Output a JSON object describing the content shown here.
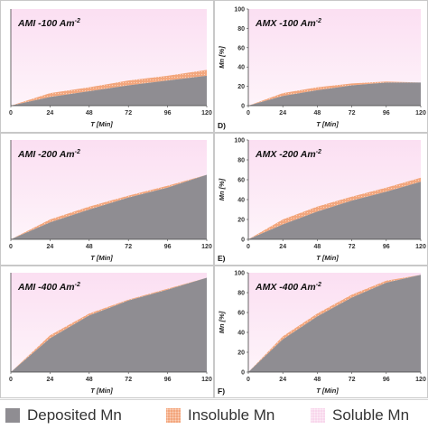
{
  "chart_data": [
    {
      "type": "area",
      "panel_label": "",
      "title": "AMI -100 Am",
      "title_sup": "-2",
      "xlabel": "T [Min]",
      "ylabel": "",
      "x": [
        0,
        24,
        48,
        72,
        96,
        120
      ],
      "xlim": [
        0,
        120
      ],
      "ylim": [
        0,
        100
      ],
      "xticks": [
        "0",
        "24",
        "48",
        "72",
        "96",
        "120"
      ],
      "yticks": [],
      "series": [
        {
          "name": "Deposited Mn",
          "values": [
            0,
            9,
            15,
            21,
            26,
            31
          ]
        },
        {
          "name": "Insoluble Mn",
          "values": [
            0,
            4,
            4,
            5,
            5,
            6
          ]
        },
        {
          "name": "Soluble Mn",
          "values": [
            100,
            87,
            81,
            74,
            69,
            63
          ]
        }
      ]
    },
    {
      "type": "area",
      "panel_label": "D)",
      "title": "AMX -100 Am",
      "title_sup": "-2",
      "xlabel": "T [Min]",
      "ylabel": "Mn [%]",
      "x": [
        0,
        24,
        48,
        72,
        96,
        120
      ],
      "xlim": [
        0,
        120
      ],
      "ylim": [
        0,
        100
      ],
      "xticks": [
        "0",
        "24",
        "48",
        "72",
        "96",
        "120"
      ],
      "yticks": [
        "0",
        "20",
        "40",
        "60",
        "80",
        "100"
      ],
      "series": [
        {
          "name": "Deposited Mn",
          "values": [
            0,
            10,
            16,
            21,
            24,
            24
          ]
        },
        {
          "name": "Insoluble Mn",
          "values": [
            0,
            3,
            3,
            2,
            1,
            0
          ]
        },
        {
          "name": "Soluble Mn",
          "values": [
            100,
            87,
            81,
            77,
            75,
            76
          ]
        }
      ]
    },
    {
      "type": "area",
      "panel_label": "",
      "title": "AMI -200 Am",
      "title_sup": "-2",
      "xlabel": "T [Min]",
      "ylabel": "",
      "x": [
        0,
        24,
        48,
        72,
        96,
        120
      ],
      "xlim": [
        0,
        120
      ],
      "ylim": [
        0,
        100
      ],
      "xticks": [
        "0",
        "24",
        "48",
        "72",
        "96",
        "120"
      ],
      "yticks": [],
      "series": [
        {
          "name": "Deposited Mn",
          "values": [
            0,
            17,
            30,
            42,
            52,
            65
          ]
        },
        {
          "name": "Insoluble Mn",
          "values": [
            0,
            3,
            3,
            2,
            2,
            0
          ]
        },
        {
          "name": "Soluble Mn",
          "values": [
            100,
            80,
            67,
            56,
            46,
            35
          ]
        }
      ]
    },
    {
      "type": "area",
      "panel_label": "E)",
      "title": "AMX -200 Am",
      "title_sup": "-2",
      "xlabel": "T [Min]",
      "ylabel": "Mn [%]",
      "x": [
        0,
        24,
        48,
        72,
        96,
        120
      ],
      "xlim": [
        0,
        120
      ],
      "ylim": [
        0,
        100
      ],
      "xticks": [
        "0",
        "24",
        "48",
        "72",
        "96",
        "120"
      ],
      "yticks": [
        "0",
        "20",
        "40",
        "60",
        "80",
        "100"
      ],
      "series": [
        {
          "name": "Deposited Mn",
          "values": [
            0,
            15,
            28,
            39,
            48,
            58
          ]
        },
        {
          "name": "Insoluble Mn",
          "values": [
            0,
            5,
            5,
            4,
            4,
            4
          ]
        },
        {
          "name": "Soluble Mn",
          "values": [
            100,
            80,
            67,
            57,
            48,
            38
          ]
        }
      ]
    },
    {
      "type": "area",
      "panel_label": "",
      "title": "AMI -400 Am",
      "title_sup": "-2",
      "xlabel": "T [Min]",
      "ylabel": "",
      "x": [
        0,
        24,
        48,
        72,
        96,
        120
      ],
      "xlim": [
        0,
        120
      ],
      "ylim": [
        0,
        100
      ],
      "xticks": [
        "0",
        "24",
        "48",
        "72",
        "96",
        "120"
      ],
      "yticks": [],
      "series": [
        {
          "name": "Deposited Mn",
          "values": [
            0,
            34,
            57,
            72,
            83,
            95
          ]
        },
        {
          "name": "Insoluble Mn",
          "values": [
            0,
            3,
            2,
            1,
            1,
            0
          ]
        },
        {
          "name": "Soluble Mn",
          "values": [
            100,
            63,
            41,
            27,
            16,
            5
          ]
        }
      ]
    },
    {
      "type": "area",
      "panel_label": "F)",
      "title": "AMX -400 Am",
      "title_sup": "-2",
      "xlabel": "T [Min]",
      "ylabel": "Mn [%]",
      "x": [
        0,
        24,
        48,
        72,
        96,
        120
      ],
      "xlim": [
        0,
        120
      ],
      "ylim": [
        0,
        100
      ],
      "xticks": [
        "0",
        "24",
        "48",
        "72",
        "96",
        "120"
      ],
      "yticks": [
        "0",
        "20",
        "40",
        "60",
        "80",
        "100"
      ],
      "series": [
        {
          "name": "Deposited Mn",
          "values": [
            0,
            33,
            56,
            75,
            90,
            98
          ]
        },
        {
          "name": "Insoluble Mn",
          "values": [
            0,
            3,
            3,
            3,
            2,
            0
          ]
        },
        {
          "name": "Soluble Mn",
          "values": [
            100,
            64,
            41,
            22,
            8,
            2
          ]
        }
      ]
    }
  ],
  "legend": {
    "items": [
      {
        "label": "Deposited Mn",
        "color": "#8f8d92",
        "pattern": "solid"
      },
      {
        "label": "Insoluble Mn",
        "color": "#f3a67d",
        "pattern": "dotted"
      },
      {
        "label": "Soluble Mn",
        "color": "#f8d6ec",
        "pattern": "dotted"
      }
    ]
  },
  "colors": {
    "deposited": "#8f8d92",
    "insoluble": "#f3a67d",
    "soluble_top": "#fbdff2",
    "soluble_bottom": "#fdf2f9"
  }
}
